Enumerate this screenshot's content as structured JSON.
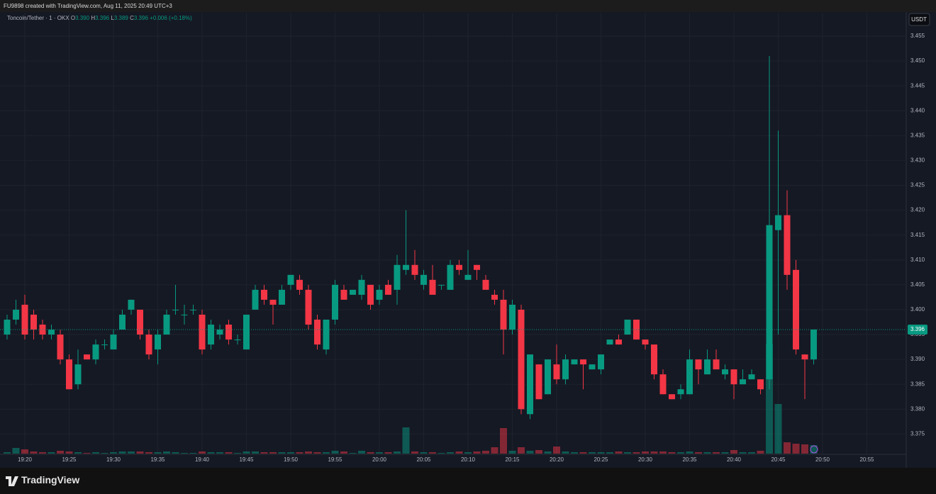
{
  "header": "FU9898 created with TradingView.com, Aug 11, 2025 20:49 UTC+3",
  "brand": "TradingView",
  "chart_data": {
    "type": "candlestick",
    "currency": "USDT",
    "legend": {
      "symbol": "Toncoin/Tether · 1 · OKX",
      "o_label": "O",
      "open": "3.390",
      "h_label": "H",
      "high": "3.396",
      "l_label": "L",
      "low": "3.389",
      "c_label": "C",
      "close": "3.396",
      "change": "+0.006 (+0.18%)"
    },
    "up_color": "#089981",
    "down_color": "#f23645",
    "grid": true,
    "last_price": 3.396,
    "ylim": [
      3.3685,
      3.4597
    ],
    "yticks": [
      3.375,
      {
        "value": 3.38,
        "label": "3.380"
      },
      3.385,
      {
        "value": 3.39,
        "label": "3.390"
      },
      3.395,
      {
        "value": 3.4,
        "label": "3.400"
      },
      3.405,
      {
        "value": 3.41,
        "label": "3.410"
      },
      3.415,
      {
        "value": 3.42,
        "label": "3.420"
      },
      3.425,
      {
        "value": 3.43,
        "label": "3.430"
      },
      3.435,
      {
        "value": 3.44,
        "label": "3.440"
      },
      3.445,
      {
        "value": 3.45,
        "label": "3.450"
      },
      3.455
    ],
    "xticks": [
      "19:20",
      "19:25",
      "19:30",
      "19:35",
      "19:40",
      "19:45",
      "19:50",
      "19:55",
      "20:00",
      "20:05",
      "20:10",
      "20:15",
      "20:20",
      "20:25",
      "20:30",
      "20:35",
      "20:40",
      "20:45",
      "20:50",
      "20:55"
    ],
    "x": [
      "19:18",
      "19:19",
      "19:20",
      "19:21",
      "19:22",
      "19:23",
      "19:24",
      "19:25",
      "19:26",
      "19:27",
      "19:28",
      "19:29",
      "19:30",
      "19:31",
      "19:32",
      "19:33",
      "19:34",
      "19:35",
      "19:36",
      "19:37",
      "19:38",
      "19:39",
      "19:40",
      "19:41",
      "19:42",
      "19:43",
      "19:44",
      "19:45",
      "19:46",
      "19:47",
      "19:48",
      "19:49",
      "19:50",
      "19:51",
      "19:52",
      "19:53",
      "19:54",
      "19:55",
      "19:56",
      "19:57",
      "19:58",
      "19:59",
      "20:00",
      "20:01",
      "20:02",
      "20:03",
      "20:04",
      "20:05",
      "20:06",
      "20:07",
      "20:08",
      "20:09",
      "20:10",
      "20:11",
      "20:12",
      "20:13",
      "20:14",
      "20:15",
      "20:16",
      "20:17",
      "20:18",
      "20:19",
      "20:20",
      "20:21",
      "20:22",
      "20:23",
      "20:24",
      "20:25",
      "20:26",
      "20:27",
      "20:28",
      "20:29",
      "20:30",
      "20:31",
      "20:32",
      "20:33",
      "20:34",
      "20:35",
      "20:36",
      "20:37",
      "20:38",
      "20:39",
      "20:40",
      "20:41",
      "20:42",
      "20:43",
      "20:44",
      "20:45",
      "20:46",
      "20:47",
      "20:48",
      "20:49"
    ],
    "open": [
      3.395,
      3.398,
      3.401,
      3.399,
      3.397,
      3.395,
      3.395,
      3.39,
      3.385,
      3.391,
      3.39,
      3.393,
      3.392,
      3.396,
      3.4,
      3.4,
      3.395,
      3.392,
      3.395,
      3.4,
      3.399,
      3.4,
      3.399,
      3.393,
      3.395,
      3.397,
      3.394,
      3.392,
      3.4,
      3.404,
      3.402,
      3.401,
      3.405,
      3.406,
      3.404,
      3.398,
      3.392,
      3.398,
      3.404,
      3.403,
      3.403,
      3.405,
      3.402,
      3.405,
      3.404,
      3.408,
      3.409,
      3.405,
      3.406,
      3.405,
      3.404,
      3.409,
      3.406,
      3.409,
      3.406,
      3.403,
      3.402,
      3.396,
      3.4,
      3.379,
      3.389,
      3.383,
      3.389,
      3.386,
      3.389,
      3.39,
      3.388,
      3.388,
      3.393,
      3.394,
      3.395,
      3.398,
      3.394,
      3.393,
      3.387,
      3.383,
      3.383,
      3.383,
      3.39,
      3.387,
      3.39,
      3.387,
      3.388,
      3.385,
      3.386,
      3.386,
      3.386,
      3.416,
      3.419,
      3.408,
      3.391,
      3.39
    ],
    "high": [
      3.399,
      3.402,
      3.403,
      3.4,
      3.398,
      3.397,
      3.396,
      3.391,
      3.392,
      3.391,
      3.394,
      3.394,
      3.396,
      3.4,
      3.402,
      3.4,
      3.396,
      3.396,
      3.4,
      3.405,
      3.401,
      3.401,
      3.4,
      3.398,
      3.397,
      3.398,
      3.395,
      3.399,
      3.405,
      3.405,
      3.402,
      3.405,
      3.407,
      3.407,
      3.405,
      3.399,
      3.398,
      3.406,
      3.405,
      3.404,
      3.407,
      3.405,
      3.405,
      3.406,
      3.411,
      3.42,
      3.412,
      3.408,
      3.409,
      3.405,
      3.41,
      3.41,
      3.412,
      3.409,
      3.407,
      3.404,
      3.404,
      3.402,
      3.401,
      3.391,
      3.389,
      3.39,
      3.393,
      3.391,
      3.39,
      3.39,
      3.389,
      3.391,
      3.394,
      3.395,
      3.398,
      3.398,
      3.394,
      3.393,
      3.388,
      3.383,
      3.385,
      3.392,
      3.39,
      3.392,
      3.392,
      3.389,
      3.388,
      3.388,
      3.388,
      3.386,
      3.451,
      3.436,
      3.424,
      3.41,
      3.391,
      3.396
    ],
    "low": [
      3.394,
      3.397,
      3.394,
      3.394,
      3.394,
      3.394,
      3.389,
      3.384,
      3.384,
      3.39,
      3.389,
      3.392,
      3.392,
      3.396,
      3.399,
      3.394,
      3.39,
      3.389,
      3.395,
      3.399,
      3.397,
      3.399,
      3.391,
      3.392,
      3.394,
      3.393,
      3.393,
      3.392,
      3.4,
      3.401,
      3.397,
      3.401,
      3.404,
      3.403,
      3.396,
      3.392,
      3.391,
      3.397,
      3.402,
      3.403,
      3.402,
      3.4,
      3.401,
      3.403,
      3.401,
      3.407,
      3.406,
      3.404,
      3.403,
      3.404,
      3.404,
      3.407,
      3.406,
      3.406,
      3.404,
      3.401,
      3.391,
      3.395,
      3.379,
      3.378,
      3.382,
      3.383,
      3.385,
      3.385,
      3.389,
      3.384,
      3.388,
      3.387,
      3.393,
      3.393,
      3.395,
      3.394,
      3.392,
      3.386,
      3.383,
      3.382,
      3.382,
      3.383,
      3.385,
      3.387,
      3.388,
      3.386,
      3.382,
      3.385,
      3.386,
      3.383,
      3.384,
      3.395,
      3.404,
      3.391,
      3.382,
      3.389
    ],
    "close": [
      3.398,
      3.4,
      3.395,
      3.396,
      3.395,
      3.396,
      3.39,
      3.384,
      3.389,
      3.39,
      3.393,
      3.393,
      3.395,
      3.399,
      3.402,
      3.395,
      3.391,
      3.395,
      3.399,
      3.4,
      3.399,
      3.4,
      3.392,
      3.397,
      3.396,
      3.394,
      3.394,
      3.399,
      3.404,
      3.402,
      3.401,
      3.404,
      3.407,
      3.404,
      3.397,
      3.393,
      3.398,
      3.405,
      3.402,
      3.404,
      3.406,
      3.401,
      3.404,
      3.403,
      3.409,
      3.409,
      3.407,
      3.407,
      3.403,
      3.405,
      3.409,
      3.408,
      3.407,
      3.408,
      3.404,
      3.402,
      3.396,
      3.401,
      3.38,
      3.391,
      3.382,
      3.39,
      3.386,
      3.39,
      3.39,
      3.389,
      3.389,
      3.391,
      3.394,
      3.393,
      3.398,
      3.394,
      3.393,
      3.387,
      3.383,
      3.382,
      3.384,
      3.39,
      3.388,
      3.39,
      3.388,
      3.388,
      3.385,
      3.386,
      3.387,
      3.384,
      3.417,
      3.419,
      3.407,
      3.392,
      3.39,
      3.396
    ],
    "volume": [
      2,
      8,
      6,
      3,
      2,
      2,
      4,
      3,
      2,
      1,
      2,
      1,
      2,
      3,
      3,
      3,
      2,
      2,
      3,
      2,
      1,
      1,
      3,
      2,
      2,
      2,
      1,
      3,
      3,
      2,
      2,
      2,
      2,
      2,
      3,
      2,
      2,
      4,
      3,
      1,
      4,
      2,
      2,
      2,
      3,
      37,
      3,
      2,
      2,
      1,
      2,
      3,
      2,
      3,
      4,
      9,
      36,
      4,
      9,
      4,
      5,
      3,
      10,
      3,
      2,
      2,
      2,
      2,
      2,
      3,
      2,
      2,
      3,
      3,
      3,
      2,
      2,
      3,
      2,
      2,
      2,
      2,
      5,
      2,
      2,
      4,
      155,
      70,
      16,
      14,
      13,
      12
    ]
  }
}
